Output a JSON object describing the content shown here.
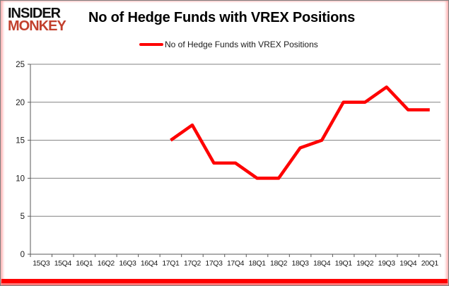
{
  "logo": {
    "line1": "INSIDER",
    "line2": "MONKEY"
  },
  "header": {
    "title": "No of Hedge Funds with VREX Positions"
  },
  "legend": {
    "label": "No of Hedge Funds with VREX Positions"
  },
  "colors": {
    "series_line": "#fe0000",
    "logo_red": "#c2402d",
    "gridline": "#808080",
    "axis": "#595959",
    "tick_text": "#1a1a1a",
    "accent_bar": "#fe0000",
    "frame_border": "#7f7f7f"
  },
  "chart_data": {
    "type": "line",
    "title": "No of Hedge Funds with VREX Positions",
    "categories": [
      "15Q3",
      "15Q4",
      "16Q1",
      "16Q2",
      "16Q3",
      "16Q4",
      "17Q1",
      "17Q2",
      "17Q3",
      "17Q4",
      "18Q1",
      "18Q2",
      "18Q3",
      "18Q4",
      "19Q1",
      "19Q2",
      "19Q3",
      "19Q4",
      "20Q1"
    ],
    "series": [
      {
        "name": "No of Hedge Funds with VREX Positions",
        "color": "#fe0000",
        "values": [
          null,
          null,
          null,
          null,
          null,
          null,
          15,
          17,
          12,
          12,
          10,
          10,
          14,
          15,
          20,
          20,
          22,
          19,
          19
        ]
      }
    ],
    "ylim": [
      0,
      25
    ],
    "ytick_step": 5,
    "grid": true,
    "legend_position": "top",
    "xlabel": "",
    "ylabel": ""
  }
}
